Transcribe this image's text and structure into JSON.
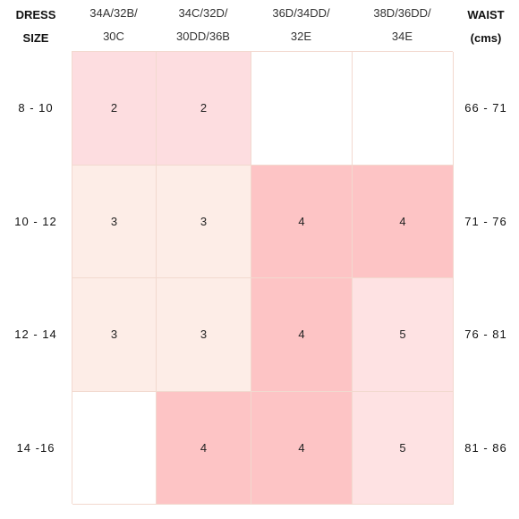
{
  "header": {
    "left_line1": "DRESS",
    "left_line2": "SIZE",
    "right_line1": "WAIST",
    "right_line2": "(cms)"
  },
  "columns": [
    {
      "line1": "34A/32B/",
      "line2": "30C"
    },
    {
      "line1": "34C/32D/",
      "line2": "30DD/36B"
    },
    {
      "line1": "36D/34DD/",
      "line2": "32E"
    },
    {
      "line1": "38D/36DD/",
      "line2": "34E"
    }
  ],
  "rows": [
    {
      "dress_size": "8 - 10",
      "waist": "66 - 71"
    },
    {
      "dress_size": "10 - 12",
      "waist": "71 - 76"
    },
    {
      "dress_size": "12 - 14",
      "waist": "76 - 81"
    },
    {
      "dress_size": "14 -16",
      "waist": "81 - 86"
    }
  ],
  "cells": [
    [
      {
        "value": "2",
        "color": "#fddde0"
      },
      {
        "value": "2",
        "color": "#fddde0"
      },
      {
        "value": "",
        "color": "#ffffff"
      },
      {
        "value": "",
        "color": "#ffffff"
      }
    ],
    [
      {
        "value": "3",
        "color": "#fdede7"
      },
      {
        "value": "3",
        "color": "#fdede7"
      },
      {
        "value": "4",
        "color": "#fdc4c5"
      },
      {
        "value": "4",
        "color": "#fdc4c5"
      }
    ],
    [
      {
        "value": "3",
        "color": "#fdede7"
      },
      {
        "value": "3",
        "color": "#fdede7"
      },
      {
        "value": "4",
        "color": "#fdc4c5"
      },
      {
        "value": "5",
        "color": "#fee2e3"
      }
    ],
    [
      {
        "value": "",
        "color": "#ffffff"
      },
      {
        "value": "4",
        "color": "#fdc4c5"
      },
      {
        "value": "4",
        "color": "#fdc4c5"
      },
      {
        "value": "5",
        "color": "#fee2e3"
      }
    ]
  ]
}
